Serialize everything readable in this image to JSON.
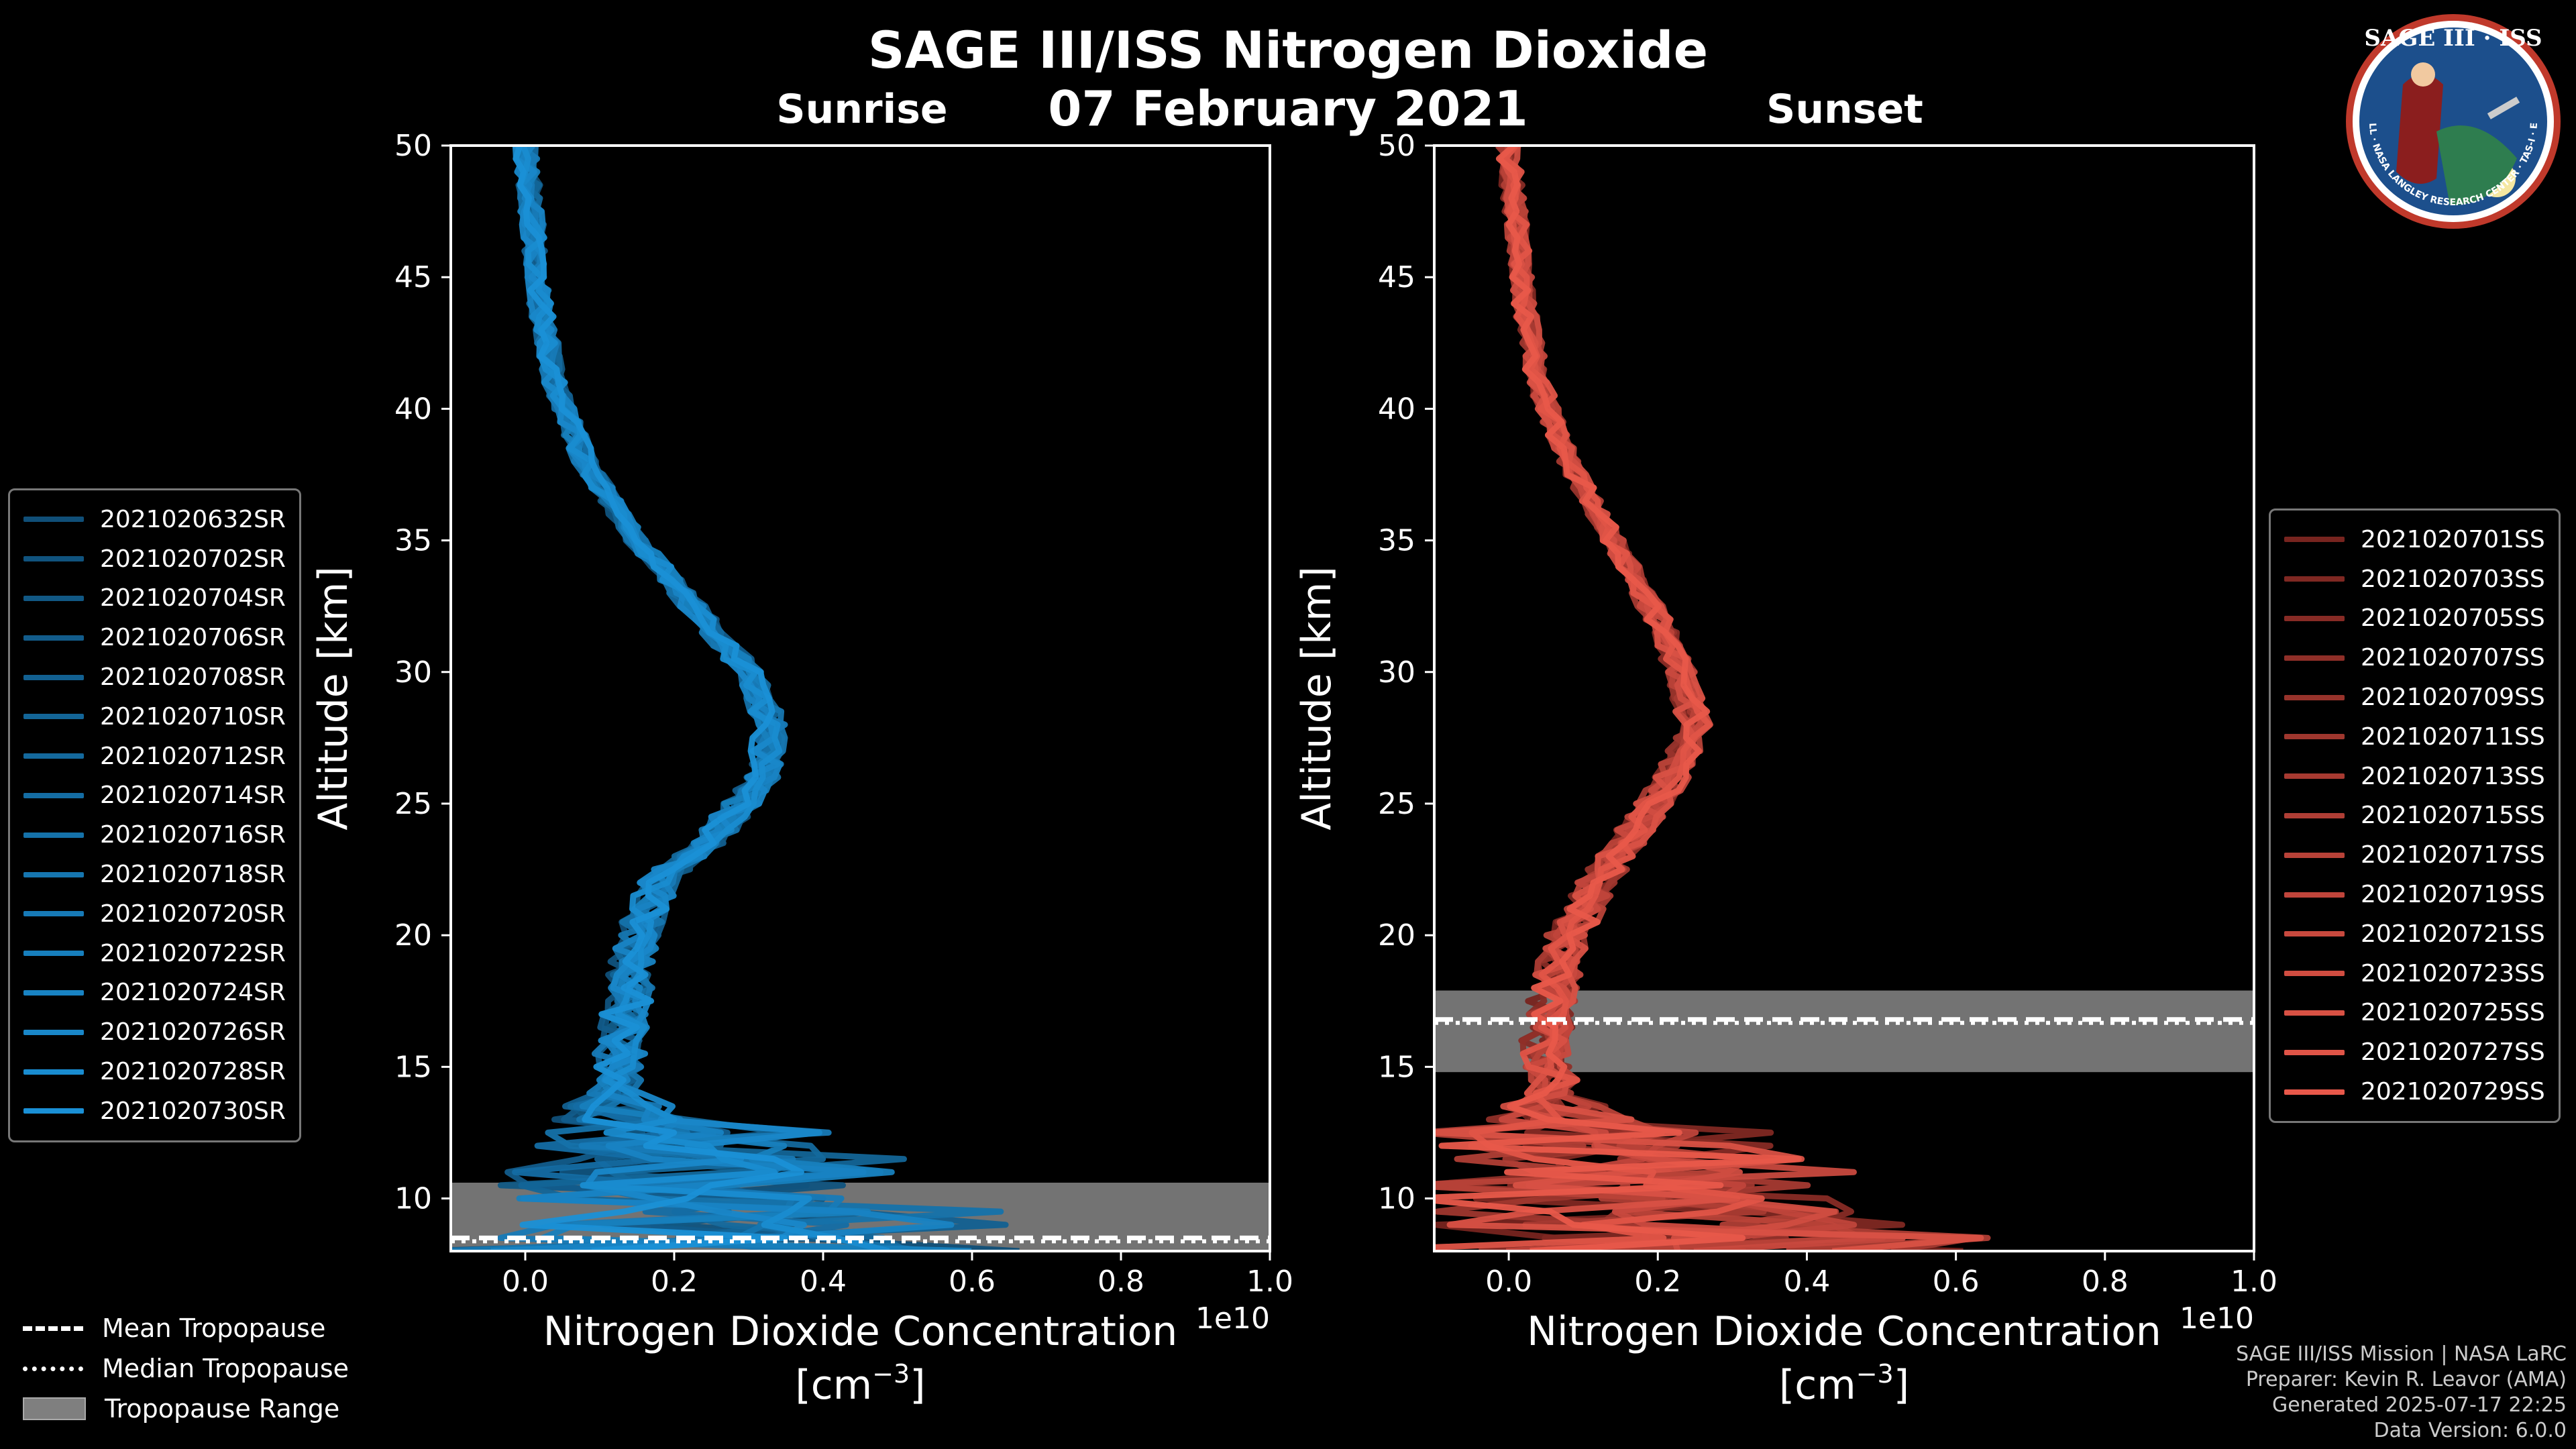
{
  "title": "SAGE III/ISS Nitrogen Dioxide",
  "date": "07 February 2021",
  "panels": {
    "sunrise": {
      "title": "Sunrise"
    },
    "sunset": {
      "title": "Sunset"
    }
  },
  "axes": {
    "ylabel": "Altitude [km]",
    "xlabel_line1": "Nitrogen Dioxide Concentration",
    "xlabel_line2": "[cm",
    "xlabel_exp": "−3",
    "xlabel_close": "]",
    "offset_text": "1e10"
  },
  "sunrise_legend": [
    "2021020632SR",
    "2021020702SR",
    "2021020704SR",
    "2021020706SR",
    "2021020708SR",
    "2021020710SR",
    "2021020712SR",
    "2021020714SR",
    "2021020716SR",
    "2021020718SR",
    "2021020720SR",
    "2021020722SR",
    "2021020724SR",
    "2021020726SR",
    "2021020728SR",
    "2021020730SR"
  ],
  "sunset_legend": [
    "2021020701SS",
    "2021020703SS",
    "2021020705SS",
    "2021020707SS",
    "2021020709SS",
    "2021020711SS",
    "2021020713SS",
    "2021020715SS",
    "2021020717SS",
    "2021020719SS",
    "2021020721SS",
    "2021020723SS",
    "2021020725SS",
    "2021020727SS",
    "2021020729SS"
  ],
  "tropopause_legend": {
    "mean": "Mean Tropopause",
    "median": "Median Tropopause",
    "range": "Tropopause Range"
  },
  "footer": {
    "line1": "SAGE III/ISS Mission | NASA LaRC",
    "line2": "Preparer: Kevin R. Leavor (AMA)",
    "line3": "Generated 2025-07-17 22:25",
    "line4": "Data Version: 6.0.0"
  },
  "logo": {
    "text": "SAGE III · ISS",
    "ring_text": "BALL · NASA LANGLEY RESEARCH CENTER · TAS-I · ESA"
  },
  "colors": {
    "sunrise": "#1a90d6",
    "sunset": "#e8584a",
    "tropo_range": "#7f7f7f",
    "background": "#000000"
  },
  "chart_data": [
    {
      "type": "line",
      "title": "Sunrise",
      "xlabel": "Nitrogen Dioxide Concentration [cm^-3]",
      "ylabel": "Altitude [km]",
      "x_scale_factor": "1e10",
      "xlim": [
        -0.1,
        1.0
      ],
      "ylim": [
        8,
        50
      ],
      "xticks": [
        0.0,
        0.2,
        0.4,
        0.6,
        0.8,
        1.0
      ],
      "yticks": [
        10,
        15,
        20,
        25,
        30,
        35,
        40,
        45,
        50
      ],
      "profile_mean": {
        "altitude_km": [
          50,
          47,
          44,
          41,
          38,
          35,
          32,
          30,
          28,
          26,
          24,
          22,
          20,
          18,
          16,
          14,
          12,
          10,
          9
        ],
        "no2_1e10": [
          0.0,
          0.01,
          0.02,
          0.04,
          0.08,
          0.15,
          0.24,
          0.3,
          0.33,
          0.32,
          0.26,
          0.18,
          0.15,
          0.14,
          0.13,
          0.12,
          0.15,
          0.2,
          0.25
        ]
      },
      "tropopause": {
        "mean_km": 8.5,
        "median_km": 8.5,
        "range_km": [
          8.0,
          10.6
        ]
      },
      "n_series": 16,
      "grid": false
    },
    {
      "type": "line",
      "title": "Sunset",
      "xlabel": "Nitrogen Dioxide Concentration [cm^-3]",
      "ylabel": "Altitude [km]",
      "x_scale_factor": "1e10",
      "xlim": [
        -0.1,
        1.0
      ],
      "ylim": [
        8,
        50
      ],
      "xticks": [
        0.0,
        0.2,
        0.4,
        0.6,
        0.8,
        1.0
      ],
      "yticks": [
        10,
        15,
        20,
        25,
        30,
        35,
        40,
        45,
        50
      ],
      "profile_mean": {
        "altitude_km": [
          50,
          47,
          44,
          41,
          38,
          35,
          32,
          30,
          28,
          26,
          24,
          22,
          20,
          18,
          16,
          14,
          12,
          10,
          9
        ],
        "no2_1e10": [
          0.0,
          0.01,
          0.02,
          0.04,
          0.08,
          0.14,
          0.2,
          0.23,
          0.25,
          0.22,
          0.17,
          0.12,
          0.08,
          0.06,
          0.05,
          0.06,
          0.08,
          0.12,
          0.15
        ]
      },
      "tropopause": {
        "mean_km": 16.8,
        "median_km": 16.8,
        "range_km": [
          14.8,
          17.9
        ]
      },
      "n_series": 15,
      "grid": false
    }
  ]
}
